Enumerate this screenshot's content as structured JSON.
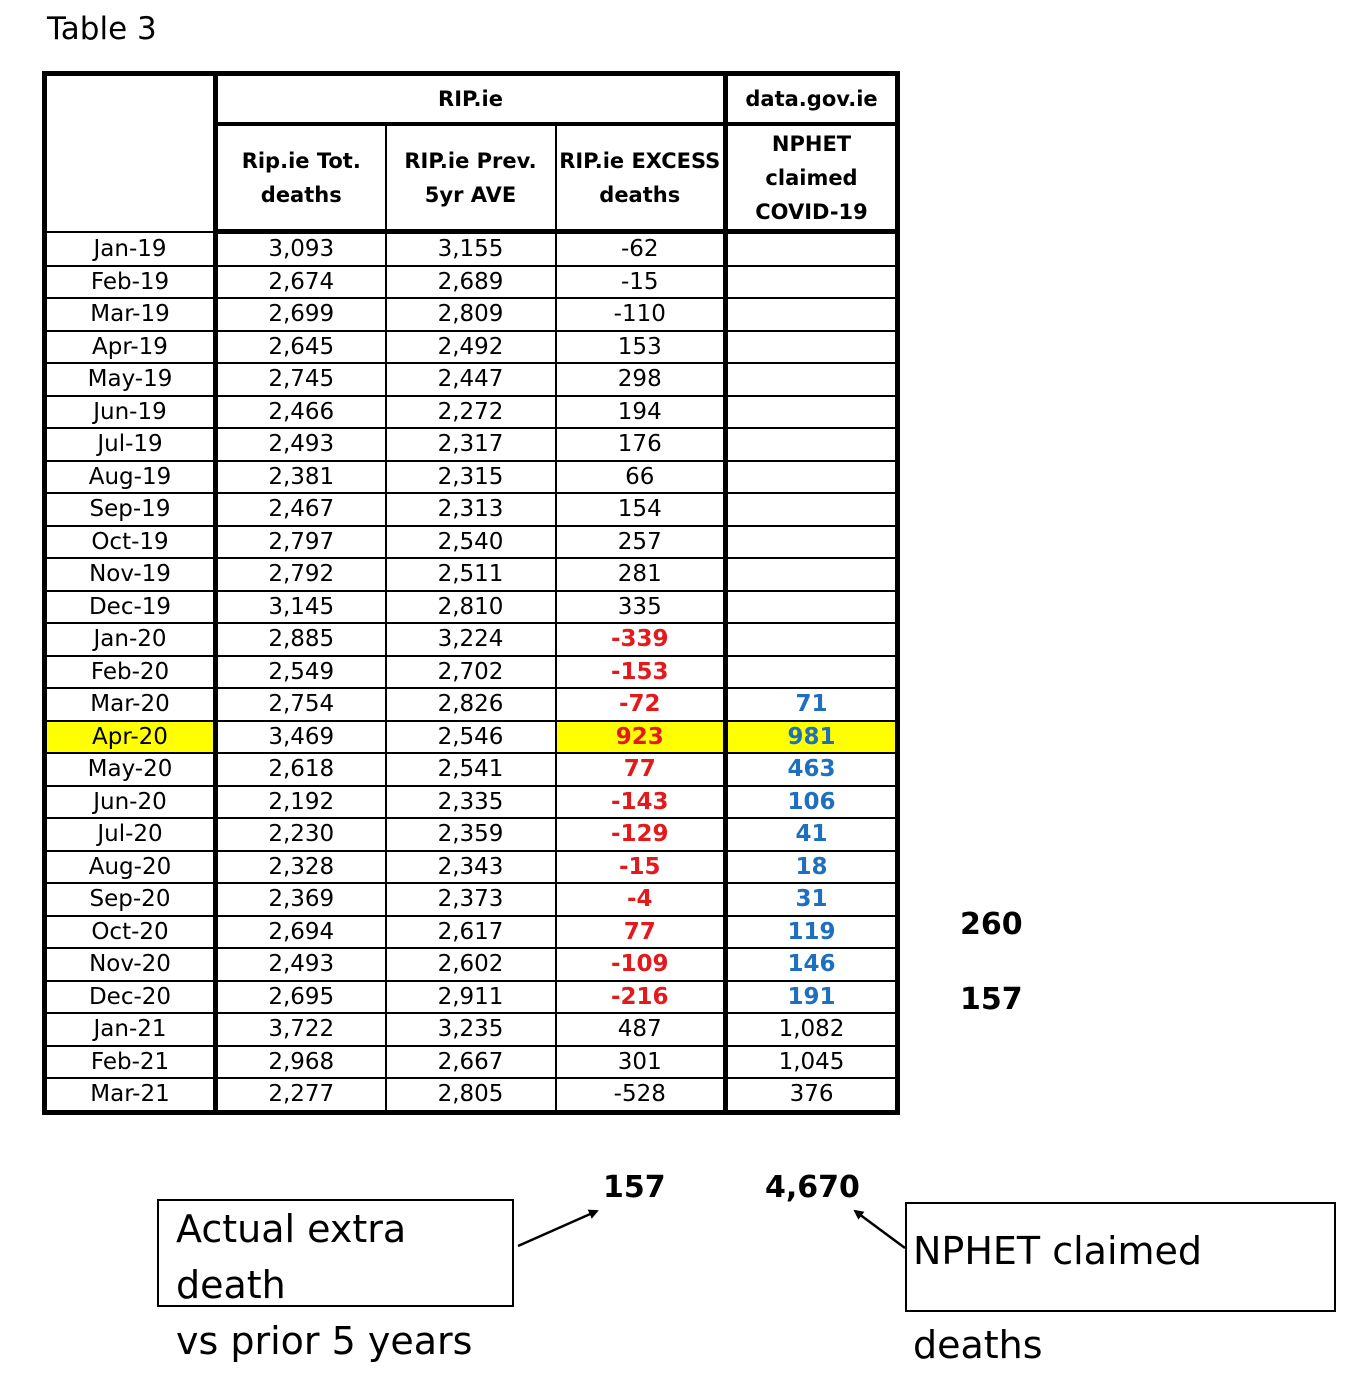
{
  "title": "Table 3",
  "header": {
    "group1": "RIP.ie",
    "group2": "data.gov.ie",
    "col1": "Rip.ie Tot. deaths",
    "col2": "RIP.ie Prev. 5yr AVE",
    "col3": "RIP.ie EXCESS deaths",
    "col4": "NPHET claimed COVID-19"
  },
  "rows": [
    {
      "month": "Jan-19",
      "tot": "3,093",
      "ave": "3,155",
      "excess": "-62",
      "nphet": ""
    },
    {
      "month": "Feb-19",
      "tot": "2,674",
      "ave": "2,689",
      "excess": "-15",
      "nphet": ""
    },
    {
      "month": "Mar-19",
      "tot": "2,699",
      "ave": "2,809",
      "excess": "-110",
      "nphet": ""
    },
    {
      "month": "Apr-19",
      "tot": "2,645",
      "ave": "2,492",
      "excess": "153",
      "nphet": ""
    },
    {
      "month": "May-19",
      "tot": "2,745",
      "ave": "2,447",
      "excess": "298",
      "nphet": ""
    },
    {
      "month": "Jun-19",
      "tot": "2,466",
      "ave": "2,272",
      "excess": "194",
      "nphet": ""
    },
    {
      "month": "Jul-19",
      "tot": "2,493",
      "ave": "2,317",
      "excess": "176",
      "nphet": ""
    },
    {
      "month": "Aug-19",
      "tot": "2,381",
      "ave": "2,315",
      "excess": "66",
      "nphet": ""
    },
    {
      "month": "Sep-19",
      "tot": "2,467",
      "ave": "2,313",
      "excess": "154",
      "nphet": ""
    },
    {
      "month": "Oct-19",
      "tot": "2,797",
      "ave": "2,540",
      "excess": "257",
      "nphet": ""
    },
    {
      "month": "Nov-19",
      "tot": "2,792",
      "ave": "2,511",
      "excess": "281",
      "nphet": ""
    },
    {
      "month": "Dec-19",
      "tot": "3,145",
      "ave": "2,810",
      "excess": "335",
      "nphet": ""
    },
    {
      "month": "Jan-20",
      "tot": "2,885",
      "ave": "3,224",
      "excess": "-339",
      "nphet": "",
      "excessStyle": "red"
    },
    {
      "month": "Feb-20",
      "tot": "2,549",
      "ave": "2,702",
      "excess": "-153",
      "nphet": "",
      "excessStyle": "red"
    },
    {
      "month": "Mar-20",
      "tot": "2,754",
      "ave": "2,826",
      "excess": "-72",
      "nphet": "71",
      "excessStyle": "red",
      "nphetStyle": "blue"
    },
    {
      "month": "Apr-20",
      "tot": "3,469",
      "ave": "2,546",
      "excess": "923",
      "nphet": "981",
      "excessStyle": "red",
      "nphetStyle": "blue",
      "highlight": true
    },
    {
      "month": "May-20",
      "tot": "2,618",
      "ave": "2,541",
      "excess": "77",
      "nphet": "463",
      "excessStyle": "red",
      "nphetStyle": "blue"
    },
    {
      "month": "Jun-20",
      "tot": "2,192",
      "ave": "2,335",
      "excess": "-143",
      "nphet": "106",
      "excessStyle": "red",
      "nphetStyle": "blue"
    },
    {
      "month": "Jul-20",
      "tot": "2,230",
      "ave": "2,359",
      "excess": "-129",
      "nphet": "41",
      "excessStyle": "red",
      "nphetStyle": "blue"
    },
    {
      "month": "Aug-20",
      "tot": "2,328",
      "ave": "2,343",
      "excess": "-15",
      "nphet": "18",
      "excessStyle": "red",
      "nphetStyle": "blue"
    },
    {
      "month": "Sep-20",
      "tot": "2,369",
      "ave": "2,373",
      "excess": "-4",
      "nphet": "31",
      "excessStyle": "red",
      "nphetStyle": "blue"
    },
    {
      "month": "Oct-20",
      "tot": "2,694",
      "ave": "2,617",
      "excess": "77",
      "nphet": "119",
      "excessStyle": "red",
      "nphetStyle": "blue"
    },
    {
      "month": "Nov-20",
      "tot": "2,493",
      "ave": "2,602",
      "excess": "-109",
      "nphet": "146",
      "excessStyle": "red",
      "nphetStyle": "blue"
    },
    {
      "month": "Dec-20",
      "tot": "2,695",
      "ave": "2,911",
      "excess": "-216",
      "nphet": "191",
      "excessStyle": "red",
      "nphetStyle": "blue"
    },
    {
      "month": "Jan-21",
      "tot": "3,722",
      "ave": "3,235",
      "excess": "487",
      "nphet": "1,082"
    },
    {
      "month": "Feb-21",
      "tot": "2,968",
      "ave": "2,667",
      "excess": "301",
      "nphet": "1,045"
    },
    {
      "month": "Mar-21",
      "tot": "2,277",
      "ave": "2,805",
      "excess": "-528",
      "nphet": "376"
    }
  ],
  "side_values": [
    "260",
    "157"
  ],
  "totals": {
    "excess": "157",
    "nphet": "4,670"
  },
  "callouts": {
    "left_line1": "Actual extra death",
    "left_line2": "vs prior 5 years",
    "right": "NPHET claimed deaths"
  },
  "colors": {
    "red": "#e3191c",
    "blue": "#1f6fbf",
    "highlight": "#ffff00"
  }
}
